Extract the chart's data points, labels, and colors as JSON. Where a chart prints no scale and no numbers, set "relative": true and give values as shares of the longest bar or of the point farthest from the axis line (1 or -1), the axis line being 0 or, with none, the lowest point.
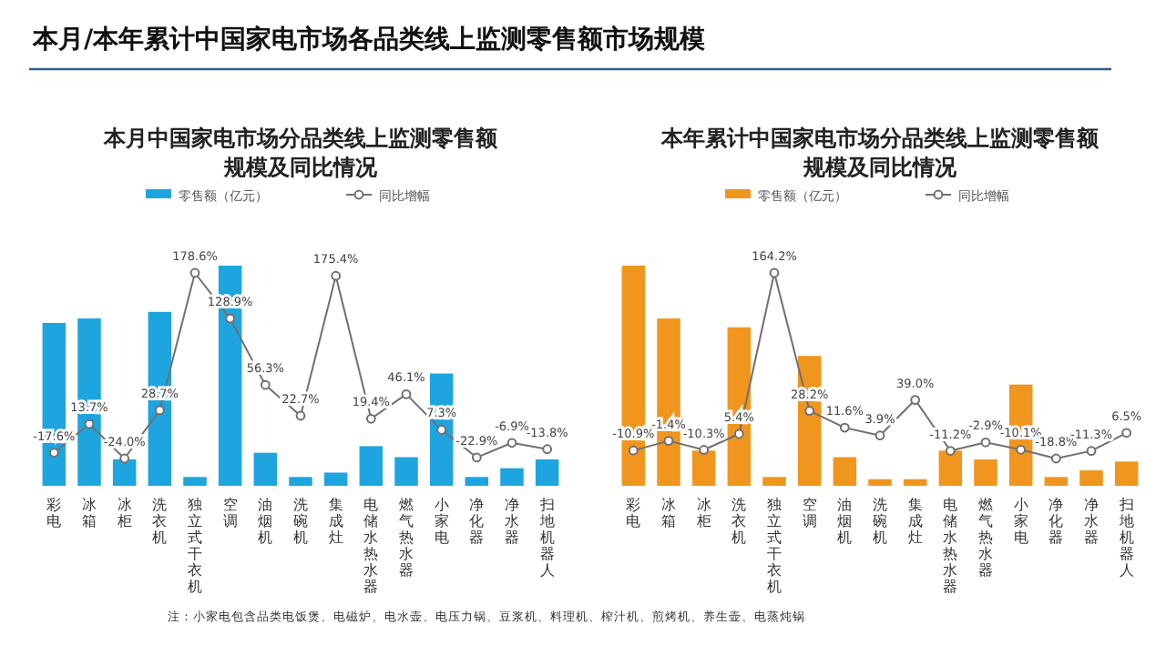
{
  "chart_data": [
    {
      "type": "bar",
      "title": "本月中国家电市场分品类线上监测零售额规模及同比情况",
      "relative": true,
      "legend": "top",
      "categories": [
        "彩电",
        "冰箱",
        "冰柜",
        "洗衣机",
        "独立式干衣机",
        "空调",
        "油烟机",
        "洗碗机",
        "集成灶",
        "电储水热水器",
        "燃气热水器",
        "小家电",
        "净化器",
        "净水器",
        "扫地机器人"
      ],
      "series": [
        {
          "name": "零售额（亿元）",
          "color": "#1ea5e0",
          "values": [
            0.74,
            0.76,
            0.12,
            0.79,
            0.04,
            1,
            0.15,
            0.04,
            0.06,
            0.18,
            0.13,
            0.51,
            0.04,
            0.08,
            0.12
          ]
        }
      ],
      "annotations": [
        "本月/本年累计中国家电市场各品类线上监测零售额市场规模",
        "注：小家电包含品类电饭煲、电磁炉、电水壶、电压力锅、豆浆机、料理机、榨汁机、煎烤机、养生壶、电蒸炖锅"
      ]
    },
    {
      "type": "line",
      "legend": "top",
      "marker": "circle",
      "series": [
        {
          "name": "同比增幅",
          "color": "#707070",
          "values": [
            -17.6,
            13.7,
            -24.0,
            28.7,
            178.6,
            128.9,
            56.3,
            22.7,
            175.4,
            19.4,
            46.1,
            7.3,
            -22.9,
            -6.9,
            -13.8
          ],
          "value_labels": [
            "-17.6%",
            "13.7%",
            "-24.0%",
            "28.7%",
            "178.6%",
            "128.9%",
            "56.3%",
            "22.7%",
            "175.4%",
            "19.4%",
            "46.1%",
            "7.3%",
            "-22.9%",
            "-6.9%",
            "-13.8%"
          ]
        }
      ]
    },
    {
      "type": "bar",
      "title": "本年累计中国家电市场分品类线上监测零售额规模及同比情况",
      "relative": true,
      "legend": "top",
      "categories": [
        "彩电",
        "冰箱",
        "冰柜",
        "洗衣机",
        "独立式干衣机",
        "空调",
        "油烟机",
        "洗碗机",
        "集成灶",
        "电储水热水器",
        "燃气热水器",
        "小家电",
        "净化器",
        "净水器",
        "扫地机器人"
      ],
      "series": [
        {
          "name": "零售额（亿元）",
          "color": "#f0961e",
          "values": [
            1,
            0.76,
            0.16,
            0.72,
            0.04,
            0.59,
            0.13,
            0.03,
            0.03,
            0.16,
            0.12,
            0.46,
            0.04,
            0.07,
            0.11
          ]
        }
      ]
    },
    {
      "type": "line",
      "legend": "top",
      "marker": "circle",
      "series": [
        {
          "name": "同比增幅",
          "color": "#707070",
          "values": [
            -10.9,
            -1.4,
            -10.3,
            5.4,
            164.2,
            28.2,
            11.6,
            3.9,
            39.0,
            -11.2,
            -2.9,
            -10.1,
            -18.8,
            -11.3,
            6.5
          ],
          "value_labels": [
            "-10.9%",
            "-1.4%",
            "-10.3%",
            "5.4%",
            "164.2%",
            "28.2%",
            "11.6%",
            "3.9%",
            "39.0%",
            "-11.2%",
            "-2.9%",
            "-10.1%",
            "-18.8%",
            "-11.3%",
            "6.5%"
          ]
        }
      ]
    }
  ]
}
